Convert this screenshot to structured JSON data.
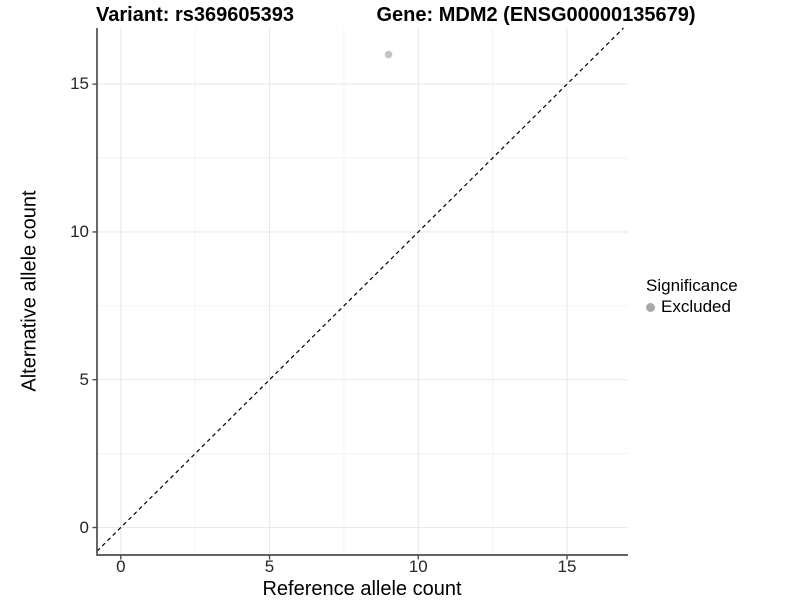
{
  "titles": {
    "left": "Variant: rs369605393",
    "right": "Gene: MDM2 (ENSG00000135679)"
  },
  "axes": {
    "x": {
      "label": "Reference allele count",
      "ticks": [
        "0",
        "5",
        "10",
        "15"
      ]
    },
    "y": {
      "label": "Alternative allele count",
      "ticks": [
        "0",
        "5",
        "10",
        "15"
      ]
    }
  },
  "legend": {
    "title": "Significance",
    "items": [
      {
        "label": "Excluded",
        "color": "#a9a9a9",
        "marker": "circle-icon"
      }
    ]
  },
  "chart_data": {
    "type": "scatter",
    "title_left": "Variant: rs369605393",
    "title_right": "Gene: MDM2 (ENSG00000135679)",
    "xlabel": "Reference allele count",
    "ylabel": "Alternative allele count",
    "xlim": [
      -0.8,
      17.05
    ],
    "ylim": [
      -0.93,
      16.9
    ],
    "x_major": [
      0,
      5,
      10,
      15
    ],
    "x_minor": [
      2.5,
      7.5,
      12.5
    ],
    "y_major": [
      0,
      5,
      10,
      15
    ],
    "y_minor": [
      2.5,
      7.5,
      12.5
    ],
    "series": [
      {
        "name": "Excluded",
        "color": "#c3c3c3",
        "marker_radius": 3.8,
        "points": [
          {
            "x": 9,
            "y": 16
          }
        ]
      }
    ],
    "reference_line": {
      "type": "identity",
      "slope": 1,
      "intercept": 0,
      "style": "dashed",
      "color": "#000000"
    },
    "grid": "major+minor",
    "legend_position": "right"
  },
  "colors": {
    "background": "#ffffff",
    "grid_major": "#e9e9e9",
    "grid_minor": "#f2f2f2",
    "axis_line": "#4d4d4d",
    "tick_text": "#262626"
  }
}
